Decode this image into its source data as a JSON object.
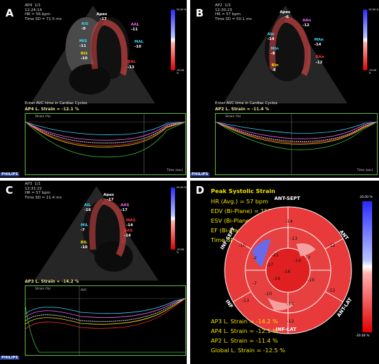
{
  "panels": {
    "A": {
      "letter": "A",
      "header": "AP4  1/1\n12:24:14\nHR = 56 bpm\nTime SD = 71.5 ms",
      "apex": "Apex",
      "apex_val": "-17",
      "labels": [
        {
          "t": "AIS",
          "v": "-9",
          "c": "#3fd7ff"
        },
        {
          "t": "MIS",
          "v": "-11",
          "c": "#3fd7ff"
        },
        {
          "t": "BIS",
          "v": "-10",
          "c": "#f2e200"
        },
        {
          "t": "AAL",
          "v": "-11",
          "c": "#ff66ff"
        },
        {
          "t": "MAL",
          "v": "-10",
          "c": "#3fd7ff"
        },
        {
          "t": "BAL",
          "v": "-13",
          "c": "#ff3333"
        }
      ],
      "msg": "Enter AVC time in Cardiac Cycles",
      "strain": "AP4 L. Strain = -12.1 %"
    },
    "B": {
      "letter": "B",
      "header": "AP2  1/1\n12:30:23\nHR = 57 bpm\nTime SD = 50.1 ms",
      "apex": "Apex",
      "apex_val": "-6",
      "labels": [
        {
          "t": "AIn",
          "v": "-14",
          "c": "#3fd7ff"
        },
        {
          "t": "MIn",
          "v": "-8",
          "c": "#3fd7ff"
        },
        {
          "t": "BIn",
          "v": "-8",
          "c": "#f2e200"
        },
        {
          "t": "AAn",
          "v": "-12",
          "c": "#ff66ff"
        },
        {
          "t": "MAn",
          "v": "-14",
          "c": "#3fd7ff"
        },
        {
          "t": "BAn",
          "v": "-12",
          "c": "#ff3333"
        }
      ],
      "msg": "Enter AVC time in Cardiac Cycles",
      "strain": "AP2 L. Strain = -11.4 %"
    },
    "C": {
      "letter": "C",
      "header": "AP3  1/1\n12:31:22\nHR = 57 bpm\nTime SD = 11.4 ms",
      "apex": "Apex",
      "apex_val": "-17",
      "labels": [
        {
          "t": "AIL",
          "v": "-16",
          "c": "#3fd7ff"
        },
        {
          "t": "MIL",
          "v": "-7",
          "c": "#3fd7ff"
        },
        {
          "t": "BIL",
          "v": "-10",
          "c": "#f2e200"
        },
        {
          "t": "AAS",
          "v": "-17",
          "c": "#ff66ff"
        },
        {
          "t": "MAS",
          "v": "-14",
          "c": "#ff3333"
        },
        {
          "t": "BAS",
          "v": "-14",
          "c": "#ff3333"
        }
      ],
      "strain": "AP3 L. Strain = -14.2 %"
    }
  },
  "colorbar": {
    "top": "20.00 %",
    "bottom": "-20.00 %"
  },
  "graph": {
    "title": "Strain (%)",
    "time_label": "Time (sec)",
    "avc": "AVC"
  },
  "philips": "PHILIPS",
  "bullseye": {
    "letter": "D",
    "title": "Peak Systolic Strain",
    "info": [
      "HR (Avg.) = 57 bpm",
      "EDV (Bi-Plane) = 158.2 ml",
      "ESV (Bi-Plane) = 82.8 ml",
      "EF (Bi-Plane) = 47.6 %",
      "Time SD = 76.9 ms"
    ],
    "summary": [
      "AP3 L. Strain = -14.2 %",
      "AP4 L. Strain = -12.1 %",
      "AP2 L. Strain = -11.4 %",
      "Global L. Strain = -12.5 %"
    ],
    "walls": {
      "ant_sept": "ANT-SEPT",
      "ant": "ANT",
      "ant_lat": "ANT-LAT",
      "inf_lat": "INF-LAT",
      "inf": "INF",
      "sept": "INF-SEPT"
    },
    "values": [
      "-14",
      "-12",
      "-12",
      "-13",
      "-12",
      "-13",
      "-10",
      "-7",
      "-10",
      "-14",
      "-7",
      "-10",
      "-14",
      "-16",
      "-16",
      "-17",
      "-21",
      "-2"
    ],
    "scale_top": "20.00 %",
    "scale_bottom": "-20.00 %"
  }
}
